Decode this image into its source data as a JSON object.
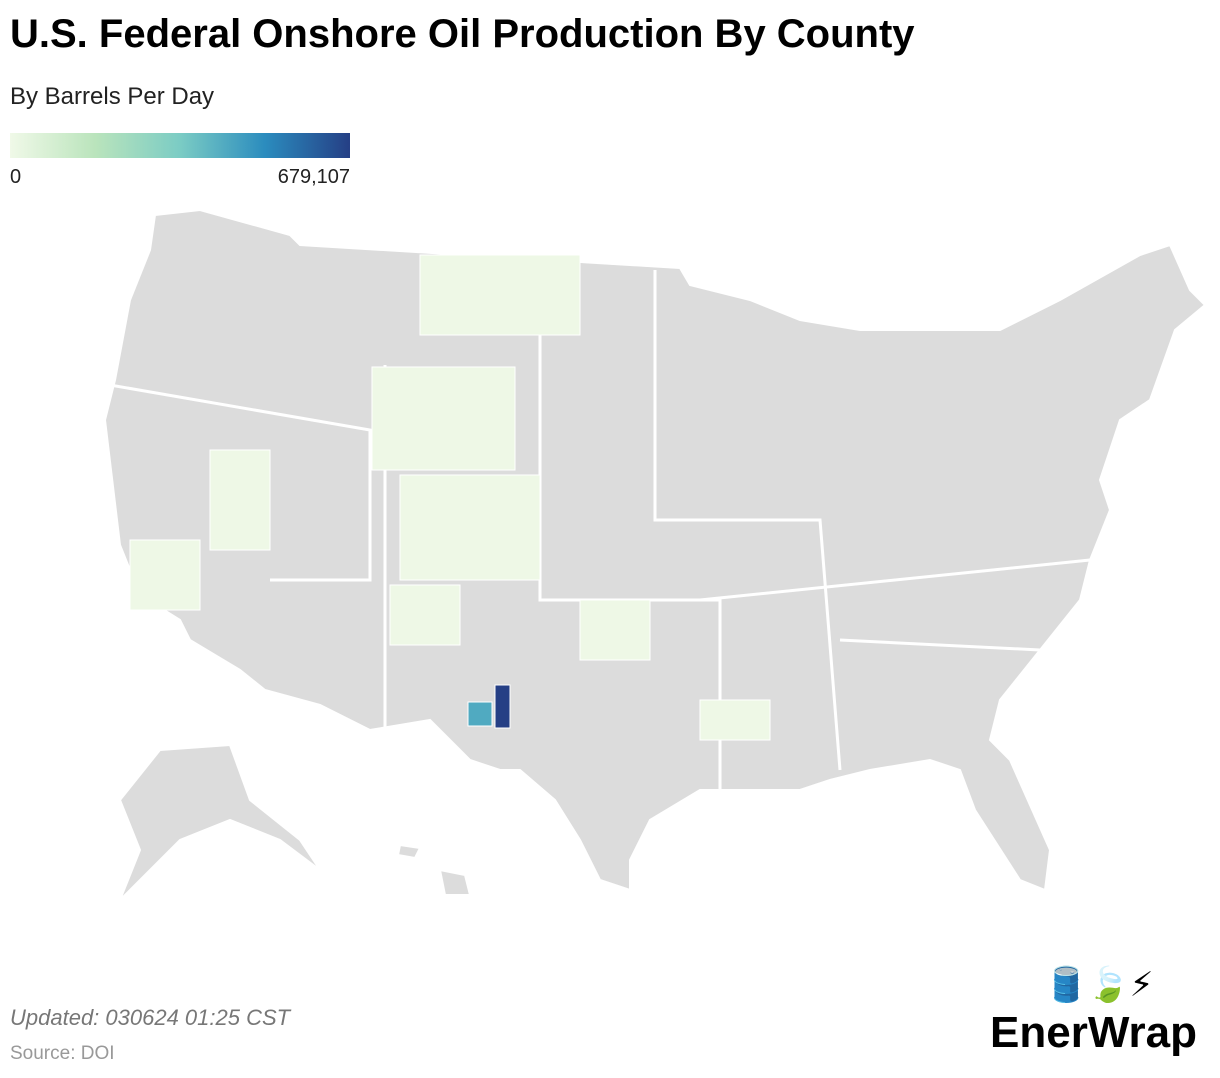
{
  "header": {
    "title": "U.S. Federal Onshore Oil Production By County",
    "subtitle": "By Barrels Per Day"
  },
  "legend": {
    "min": 0,
    "max": {
      "value": 679107,
      "label": "679,107"
    },
    "colors": [
      "#f0f9e8",
      "#bae4bc",
      "#7bccc4",
      "#2b8cbe",
      "#253f85"
    ]
  },
  "highlights": [
    {
      "value": 679107
    },
    {
      "value": 430000
    }
  ],
  "footer": {
    "updated": "Updated: 030624 01:25 CST",
    "source": "Source: DOI",
    "brand_icons": "🛢️🍃⚡",
    "brand": "EnerWrap"
  }
}
